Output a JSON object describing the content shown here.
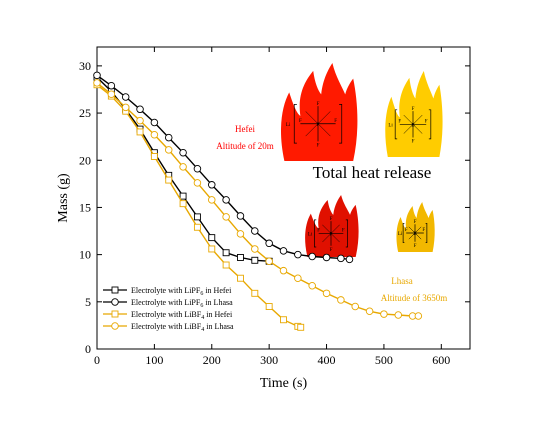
{
  "chart_data": {
    "type": "line",
    "xlabel": "Time (s)",
    "ylabel": "Mass (g)",
    "xlim": [
      0,
      650
    ],
    "ylim": [
      0,
      32
    ],
    "xticks": [
      0,
      100,
      200,
      300,
      400,
      500,
      600
    ],
    "yticks": [
      0,
      5,
      10,
      15,
      20,
      25,
      30
    ],
    "legend_position": "bottom-left",
    "grid": false,
    "series": [
      {
        "name": "Electrolyte with LiPF6 in Hefei",
        "name_main": "Electrolyte with LiPF",
        "name_sub": "6",
        "name_tail": " in Hefei",
        "color": "#000000",
        "marker": "square",
        "x": [
          0,
          25,
          50,
          75,
          100,
          125,
          150,
          175,
          200,
          225,
          250,
          275,
          300
        ],
        "y": [
          28.8,
          27.3,
          25.4,
          23.3,
          20.8,
          18.4,
          16.2,
          14.0,
          11.8,
          10.2,
          9.7,
          9.4,
          9.3
        ]
      },
      {
        "name": "Electrolyte with LiPF6 in Lhasa",
        "name_main": "Electrolyte with LiPF",
        "name_sub": "6",
        "name_tail": " in Lhasa",
        "color": "#000000",
        "marker": "circle",
        "x": [
          0,
          25,
          50,
          75,
          100,
          125,
          150,
          175,
          200,
          225,
          250,
          275,
          300,
          325,
          350,
          375,
          400,
          425,
          440
        ],
        "y": [
          29.0,
          27.9,
          26.7,
          25.4,
          24.0,
          22.4,
          20.8,
          19.1,
          17.4,
          15.8,
          14.1,
          12.5,
          11.2,
          10.4,
          10.0,
          9.8,
          9.7,
          9.6,
          9.5
        ]
      },
      {
        "name": "Electrolyte with LiBF4 in Hefei",
        "name_main": "Electrolyte with LiBF",
        "name_sub": "4",
        "name_tail": " in Hefei",
        "color": "#e8a800",
        "marker": "square",
        "x": [
          0,
          25,
          50,
          75,
          100,
          125,
          150,
          175,
          200,
          225,
          250,
          275,
          300,
          325,
          350,
          355
        ],
        "y": [
          28.0,
          26.8,
          25.2,
          23.0,
          20.4,
          17.9,
          15.4,
          12.9,
          10.6,
          8.9,
          7.5,
          5.9,
          4.5,
          3.1,
          2.4,
          2.3
        ]
      },
      {
        "name": "Electrolyte with LiBF4 in Lhasa",
        "name_main": "Electrolyte with LiBF",
        "name_sub": "4",
        "name_tail": " in Lhasa",
        "color": "#e8a800",
        "marker": "circle",
        "x": [
          0,
          25,
          50,
          75,
          100,
          125,
          150,
          175,
          200,
          225,
          250,
          275,
          300,
          325,
          350,
          375,
          400,
          425,
          450,
          475,
          500,
          525,
          550,
          560
        ],
        "y": [
          28.2,
          27.0,
          25.6,
          24.2,
          22.7,
          21.1,
          19.3,
          17.6,
          15.8,
          14.0,
          12.2,
          10.6,
          9.3,
          8.3,
          7.5,
          6.7,
          5.9,
          5.2,
          4.5,
          4.0,
          3.7,
          3.6,
          3.5,
          3.5
        ]
      }
    ],
    "annotations": {
      "hefei_label": "Hefei",
      "hefei_altitude": "Altitude of 20m",
      "lhasa_label": "Lhasa",
      "lhasa_altitude": "Altitude of 3650m",
      "center_title": "Total heat release"
    },
    "molecule_labels": {
      "pf6_center": "P",
      "bf4_center": "B",
      "fluorine": "F",
      "lithium": "Li"
    },
    "flame_colors": {
      "red": "#ff1a00",
      "red_dark": "#e01000",
      "gold": "#ffcc00",
      "gold_dark": "#f2b800"
    }
  }
}
